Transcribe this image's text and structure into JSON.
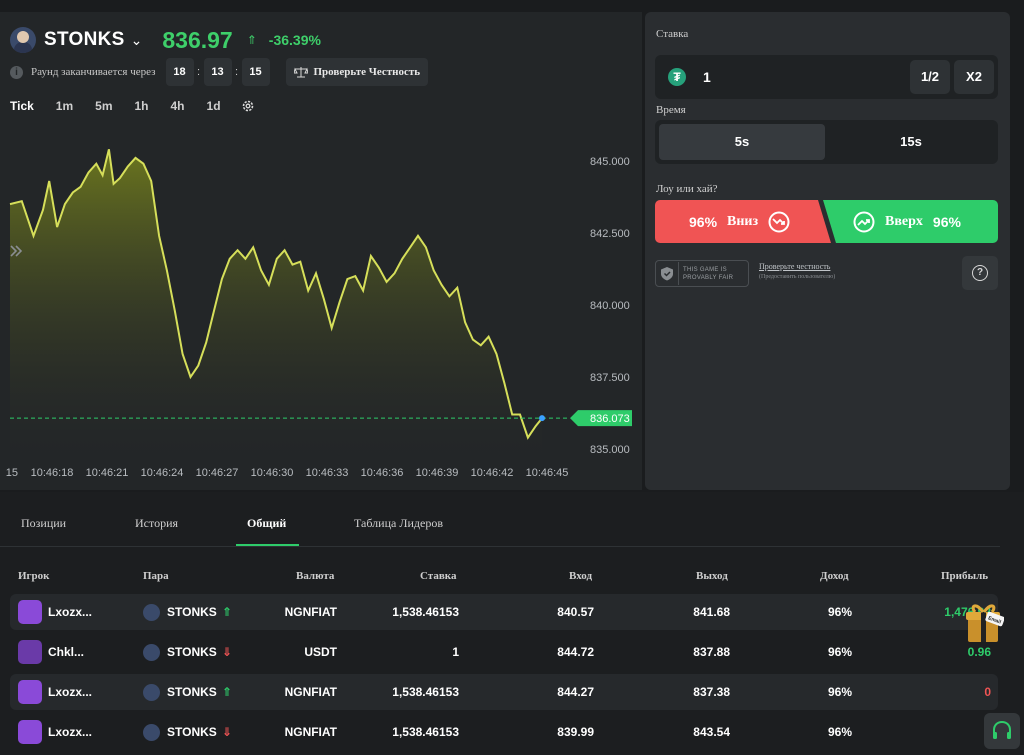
{
  "header": {
    "asset_name": "STONKS",
    "asset_price": "836.97",
    "asset_change": "-36.39%",
    "round_label": "Раунд заканчивается через",
    "timer": [
      "18",
      "13",
      "15"
    ],
    "fairness_button": "Проверьте Честность"
  },
  "timeframes": [
    "Tick",
    "1m",
    "5m",
    "1h",
    "4h",
    "1d"
  ],
  "chart_data": {
    "type": "area",
    "x_ticks": [
      "15",
      "10:46:18",
      "10:46:21",
      "10:46:24",
      "10:46:27",
      "10:46:30",
      "10:46:33",
      "10:46:36",
      "10:46:39",
      "10:46:42",
      "10:46:45"
    ],
    "y_ticks": [
      "845.000",
      "842.500",
      "840.000",
      "837.500",
      "835.000"
    ],
    "ylim": [
      834.9,
      846.0
    ],
    "current_value": "836.073",
    "current_value_num": 836.073,
    "series": [
      {
        "line_color": "#d6df5a",
        "points": [
          [
            0,
            843.5
          ],
          [
            1.5,
            843.6
          ],
          [
            3,
            842.4
          ],
          [
            4.2,
            843.3
          ],
          [
            5,
            844.3
          ],
          [
            6,
            842.7
          ],
          [
            7,
            843.5
          ],
          [
            8,
            843.9
          ],
          [
            9,
            844.1
          ],
          [
            10,
            844.6
          ],
          [
            11,
            844.9
          ],
          [
            11.8,
            844.5
          ],
          [
            12.6,
            845.4
          ],
          [
            13.2,
            844.2
          ],
          [
            14,
            844.4
          ],
          [
            15,
            844.8
          ],
          [
            16,
            845.1
          ],
          [
            17,
            844.9
          ],
          [
            18,
            844.3
          ],
          [
            19,
            842.4
          ],
          [
            20,
            841.2
          ],
          [
            21,
            839.8
          ],
          [
            22,
            838.3
          ],
          [
            23,
            837.5
          ],
          [
            24,
            837.9
          ],
          [
            25,
            838.7
          ],
          [
            26,
            839.8
          ],
          [
            27,
            840.9
          ],
          [
            28,
            841.6
          ],
          [
            29,
            841.9
          ],
          [
            30,
            841.6
          ],
          [
            31,
            842.0
          ],
          [
            32,
            841.2
          ],
          [
            33,
            840.7
          ],
          [
            34,
            841.6
          ],
          [
            35,
            841.9
          ],
          [
            36,
            841.4
          ],
          [
            37,
            841.5
          ],
          [
            38,
            840.5
          ],
          [
            39,
            841.1
          ],
          [
            40,
            840.2
          ],
          [
            41,
            839.2
          ],
          [
            42,
            840.1
          ],
          [
            43,
            840.9
          ],
          [
            44,
            841.0
          ],
          [
            45,
            840.5
          ],
          [
            46,
            841.7
          ],
          [
            47,
            841.3
          ],
          [
            48,
            840.8
          ],
          [
            49,
            841.1
          ],
          [
            50,
            841.6
          ],
          [
            51,
            842.0
          ],
          [
            52,
            842.4
          ],
          [
            53,
            842.0
          ],
          [
            54,
            841.2
          ],
          [
            55,
            840.7
          ],
          [
            56,
            840.3
          ],
          [
            57,
            840.6
          ],
          [
            58,
            839.4
          ],
          [
            59,
            838.8
          ],
          [
            60,
            838.6
          ],
          [
            61,
            838.9
          ],
          [
            62,
            838.3
          ],
          [
            63,
            837.3
          ],
          [
            64,
            836.2
          ],
          [
            65,
            836.2
          ],
          [
            66,
            835.4
          ],
          [
            67,
            835.8
          ],
          [
            67.8,
            836.07
          ]
        ]
      }
    ]
  },
  "bet_panel": {
    "stake_label": "Ставка",
    "stake_value": "1",
    "half_button": "1/2",
    "double_button": "X2",
    "time_label": "Время",
    "time_options": [
      "5s",
      "15s"
    ],
    "direction_label": "Лоу или хай?",
    "down_percent": "96%",
    "down_label": "Вниз",
    "up_label": "Вверх",
    "up_percent": "96%",
    "provably_line1": "THIS GAME IS",
    "provably_line2": "PROVABLY FAIR",
    "check_link": "Проверьте честность",
    "check_sub": "(Предоставить пользователю)"
  },
  "tabs": [
    "Позиции",
    "История",
    "Общий",
    "Таблица Лидеров"
  ],
  "table": {
    "headers": [
      "Игрок",
      "Пара",
      "Валюта",
      "Ставка",
      "Вход",
      "Выход",
      "Доход",
      "Прибыль"
    ],
    "rows": [
      {
        "player": "Lxozx...",
        "pair": "STONKS",
        "dir": "up",
        "currency": "NGNFIAT",
        "stake": "1,538.46153",
        "entry": "840.57",
        "exit": "841.68",
        "income": "96%",
        "profit": "1,476.92",
        "profit_color": "#2ecc6a"
      },
      {
        "player": "Chkl...",
        "pair": "STONKS",
        "dir": "down",
        "currency": "USDT",
        "stake": "1",
        "entry": "844.72",
        "exit": "837.88",
        "income": "96%",
        "profit": "0.96",
        "profit_color": "#2ecc6a"
      },
      {
        "player": "Lxozx...",
        "pair": "STONKS",
        "dir": "up",
        "currency": "NGNFIAT",
        "stake": "1,538.46153",
        "entry": "844.27",
        "exit": "837.38",
        "income": "96%",
        "profit": "0",
        "profit_color": "#f05454"
      },
      {
        "player": "Lxozx...",
        "pair": "STONKS",
        "dir": "down",
        "currency": "NGNFIAT",
        "stake": "1,538.46153",
        "entry": "839.99",
        "exit": "843.54",
        "income": "96%",
        "profit": "",
        "profit_color": "#2ecc6a"
      }
    ]
  },
  "gift_label": "Email",
  "colors": {
    "green": "#2ecc6a",
    "red": "#f05454",
    "accent_line": "#d6df5a"
  }
}
